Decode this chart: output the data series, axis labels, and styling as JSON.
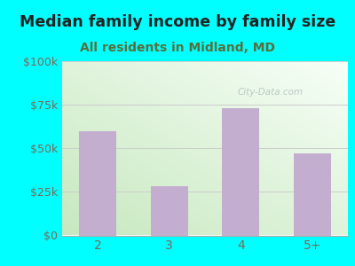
{
  "title": "Median family income by family size",
  "subtitle": "All residents in Midland, MD",
  "categories": [
    "2",
    "3",
    "4",
    "5+"
  ],
  "values": [
    60000,
    28000,
    73000,
    47000
  ],
  "bar_color": "#c4aed0",
  "title_fontsize": 12.5,
  "subtitle_fontsize": 10,
  "title_color": "#222222",
  "subtitle_color": "#5a6e3a",
  "tick_color": "#7a6a5a",
  "ylim": [
    0,
    100000
  ],
  "yticks": [
    0,
    25000,
    50000,
    75000,
    100000
  ],
  "ytick_labels": [
    "$0",
    "$25k",
    "$50k",
    "$75k",
    "$100k"
  ],
  "background_outer": "#00FFFF",
  "watermark": "City-Data.com",
  "grid_color": "#cccccc"
}
